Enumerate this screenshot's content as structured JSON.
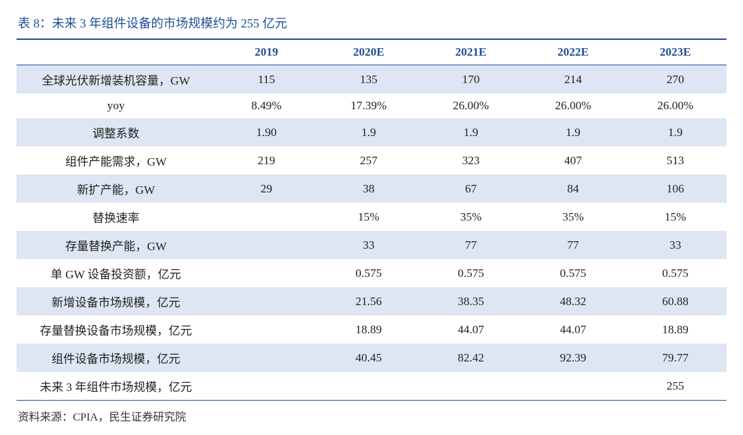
{
  "colors": {
    "title_text": "#1f4e96",
    "header_text": "#1f4e96",
    "body_text": "#222222",
    "row_band": "#dde6f2",
    "row_plain": "#ffffff",
    "rule": "#1f4e96",
    "source_text": "#333333"
  },
  "title": "表 8：未来 3 年组件设备的市场规模约为 255 亿元",
  "table": {
    "columns": [
      "",
      "2019",
      "2020E",
      "2021E",
      "2022E",
      "2023E"
    ],
    "rows": [
      {
        "label": "全球光伏新增装机容量，GW",
        "cells": [
          "115",
          "135",
          "170",
          "214",
          "270"
        ]
      },
      {
        "label": "yoy",
        "cells": [
          "8.49%",
          "17.39%",
          "26.00%",
          "26.00%",
          "26.00%"
        ]
      },
      {
        "label": "调整系数",
        "cells": [
          "1.90",
          "1.9",
          "1.9",
          "1.9",
          "1.9"
        ]
      },
      {
        "label": "组件产能需求，GW",
        "cells": [
          "219",
          "257",
          "323",
          "407",
          "513"
        ]
      },
      {
        "label": "新扩产能，GW",
        "cells": [
          "29",
          "38",
          "67",
          "84",
          "106"
        ]
      },
      {
        "label": "替换速率",
        "cells": [
          "",
          "15%",
          "35%",
          "35%",
          "15%"
        ]
      },
      {
        "label": "存量替换产能，GW",
        "cells": [
          "",
          "33",
          "77",
          "77",
          "33"
        ]
      },
      {
        "label": "单 GW 设备投资额，亿元",
        "cells": [
          "",
          "0.575",
          "0.575",
          "0.575",
          "0.575"
        ]
      },
      {
        "label": "新增设备市场规模，亿元",
        "cells": [
          "",
          "21.56",
          "38.35",
          "48.32",
          "60.88"
        ]
      },
      {
        "label": "存量替换设备市场规模，亿元",
        "cells": [
          "",
          "18.89",
          "44.07",
          "44.07",
          "18.89"
        ]
      },
      {
        "label": "组件设备市场规模，亿元",
        "cells": [
          "",
          "40.45",
          "82.42",
          "92.39",
          "79.77"
        ]
      },
      {
        "label": "未来 3 年组件市场规模，亿元",
        "cells": [
          "",
          "",
          "",
          "",
          "255"
        ]
      }
    ]
  },
  "source": "资料来源：CPIA，民生证券研究院"
}
